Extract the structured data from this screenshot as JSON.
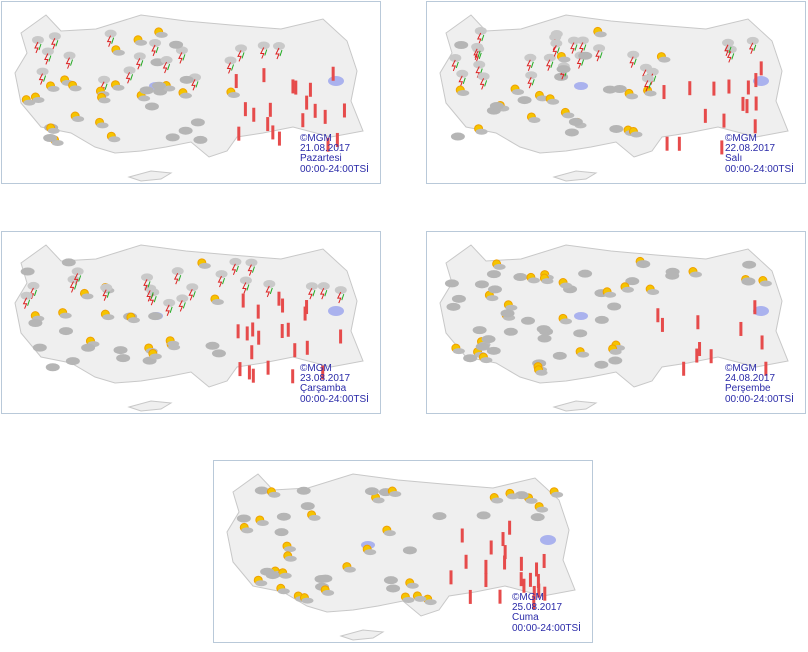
{
  "panels": [
    {
      "copyright": "©MGM",
      "date": "21.08.2017",
      "day": "Pazartesi",
      "period": "00:00-24:00TSİ"
    },
    {
      "copyright": "©MGM",
      "date": "22.08.2017",
      "day": "Salı",
      "period": "00:00-24:00TSİ"
    },
    {
      "copyright": "©MGM",
      "date": "23.08.2017",
      "day": "Çarşamba",
      "period": "00:00-24:00TSİ"
    },
    {
      "copyright": "©MGM",
      "date": "24.08.2017",
      "day": "Perşembe",
      "period": "00:00-24:00TSİ"
    },
    {
      "copyright": "©MGM",
      "date": "25.08.2017",
      "day": "Cuma",
      "period": "00:00-24:00TSİ"
    }
  ]
}
